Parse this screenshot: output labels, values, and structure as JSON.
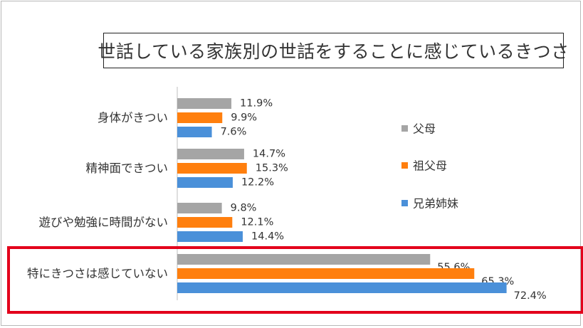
{
  "chart_data": {
    "type": "bar",
    "orientation": "horizontal",
    "title": "世話している家族別の世話をすることに感じているきつさ",
    "categories": [
      "身体がきつい",
      "精神面できつい",
      "遊びや勉強に時間がない",
      "特にきつさは感じていない"
    ],
    "series": [
      {
        "name": "父母",
        "color": "#a5a5a5",
        "values": [
          11.9,
          14.7,
          9.8,
          55.6
        ],
        "labels": [
          "11.9%",
          "14.7%",
          "9.8%",
          "55.6%"
        ]
      },
      {
        "name": "祖父母",
        "color": "#ff7f0e",
        "values": [
          9.9,
          15.3,
          12.1,
          65.3
        ],
        "labels": [
          "9.9%",
          "15.3%",
          "12.1%",
          "65.3%"
        ]
      },
      {
        "name": "兄弟姉妹",
        "color": "#4a90d9",
        "values": [
          7.6,
          12.2,
          14.4,
          72.4
        ],
        "labels": [
          "7.6%",
          "12.2%",
          "14.4%",
          "72.4%"
        ]
      }
    ],
    "xlim": [
      0,
      80
    ],
    "grid": false,
    "legend_position": "right",
    "highlighted_category": "特にきつさは感じていない",
    "highlight_color": "#e3001b"
  }
}
